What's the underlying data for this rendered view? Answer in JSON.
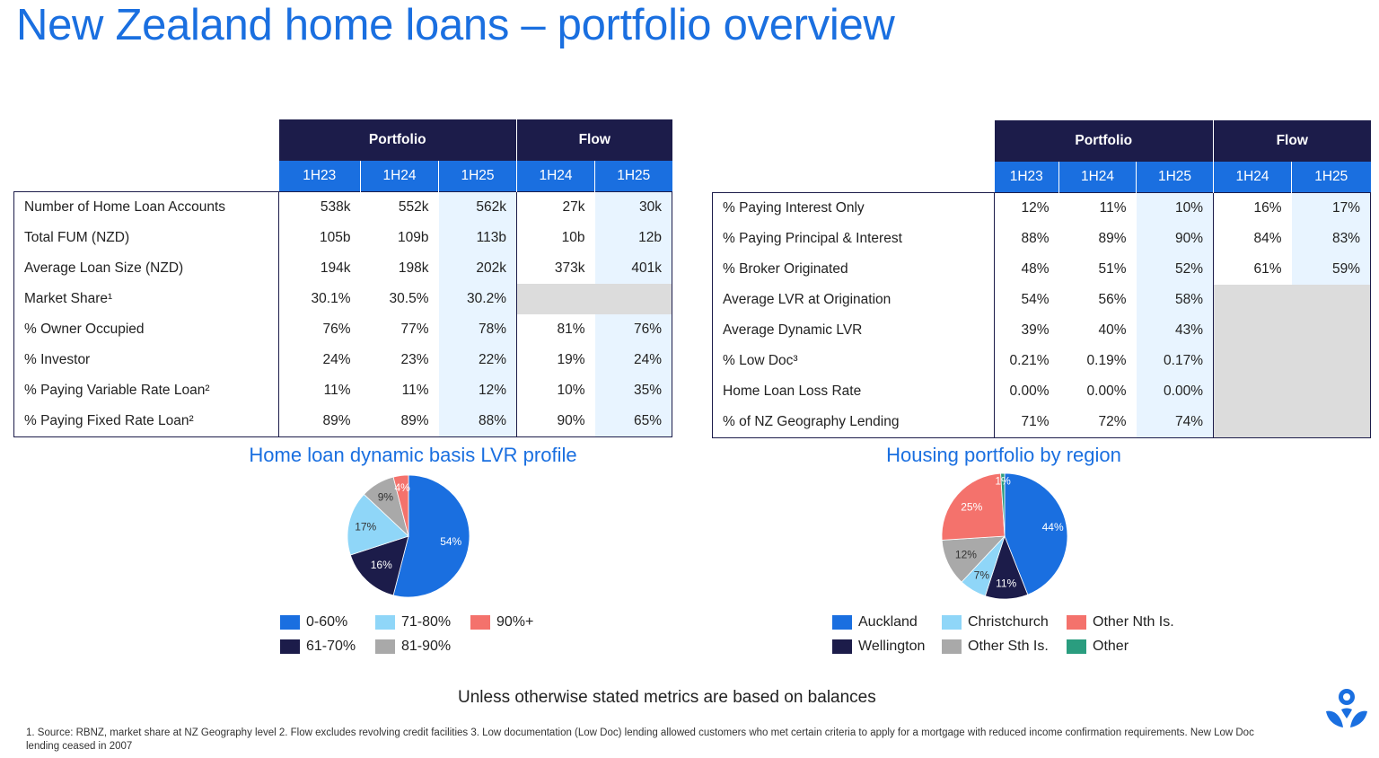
{
  "title": "New Zealand home loans – portfolio overview",
  "left_table": {
    "group_portfolio": "Portfolio",
    "group_flow": "Flow",
    "periods": [
      "1H23",
      "1H24",
      "1H25",
      "1H24",
      "1H25"
    ],
    "rows": [
      {
        "label": "Number of Home Loan Accounts",
        "values": [
          "538k",
          "552k",
          "562k",
          "27k",
          "30k"
        ]
      },
      {
        "label": "Total FUM (NZD)",
        "values": [
          "105b",
          "109b",
          "113b",
          "10b",
          "12b"
        ]
      },
      {
        "label": "Average Loan Size (NZD)",
        "values": [
          "194k",
          "198k",
          "202k",
          "373k",
          "401k"
        ]
      },
      {
        "label": "Market Share¹",
        "values": [
          "30.1%",
          "30.5%",
          "30.2%",
          "",
          ""
        ]
      },
      {
        "label": "% Owner Occupied",
        "values": [
          "76%",
          "77%",
          "78%",
          "81%",
          "76%"
        ]
      },
      {
        "label": "% Investor",
        "values": [
          "24%",
          "23%",
          "22%",
          "19%",
          "24%"
        ]
      },
      {
        "label": "% Paying Variable Rate Loan²",
        "values": [
          "11%",
          "11%",
          "12%",
          "10%",
          "35%"
        ]
      },
      {
        "label": "% Paying Fixed Rate Loan²",
        "values": [
          "89%",
          "89%",
          "88%",
          "90%",
          "65%"
        ]
      }
    ]
  },
  "right_table": {
    "group_portfolio": "Portfolio",
    "group_flow": "Flow",
    "periods": [
      "1H23",
      "1H24",
      "1H25",
      "1H24",
      "1H25"
    ],
    "rows": [
      {
        "label": "% Paying Interest Only",
        "values": [
          "12%",
          "11%",
          "10%",
          "16%",
          "17%"
        ]
      },
      {
        "label": "% Paying Principal & Interest",
        "values": [
          "88%",
          "89%",
          "90%",
          "84%",
          "83%"
        ]
      },
      {
        "label": "% Broker Originated",
        "values": [
          "48%",
          "51%",
          "52%",
          "61%",
          "59%"
        ]
      },
      {
        "label": "Average LVR at Origination",
        "values": [
          "54%",
          "56%",
          "58%",
          "",
          ""
        ]
      },
      {
        "label": "Average Dynamic LVR",
        "values": [
          "39%",
          "40%",
          "43%",
          "",
          ""
        ]
      },
      {
        "label": "% Low Doc³",
        "values": [
          "0.21%",
          "0.19%",
          "0.17%",
          "",
          ""
        ]
      },
      {
        "label": "Home Loan Loss Rate",
        "values": [
          "0.00%",
          "0.00%",
          "0.00%",
          "",
          ""
        ]
      },
      {
        "label": "% of NZ Geography Lending",
        "values": [
          "71%",
          "72%",
          "74%",
          "",
          ""
        ]
      }
    ]
  },
  "chart_data": [
    {
      "type": "pie",
      "title": "Home loan dynamic basis LVR profile",
      "slices": [
        {
          "name": "0-60%",
          "value": 54,
          "label": "54%",
          "color": "#1a6fe0"
        },
        {
          "name": "61-70%",
          "value": 16,
          "label": "16%",
          "color": "#1c1c4a"
        },
        {
          "name": "71-80%",
          "value": 17,
          "label": "17%",
          "color": "#8fd6f8"
        },
        {
          "name": "81-90%",
          "value": 9,
          "label": "9%",
          "color": "#a9a9a9"
        },
        {
          "name": "90%+",
          "value": 4,
          "label": "4%",
          "color": "#f4726c"
        }
      ],
      "legend": [
        "0-60%",
        "71-80%",
        "90%+",
        "61-70%",
        "81-90%"
      ]
    },
    {
      "type": "pie",
      "title": "Housing portfolio by region",
      "slices": [
        {
          "name": "Auckland",
          "value": 44,
          "label": "44%",
          "color": "#1a6fe0"
        },
        {
          "name": "Wellington",
          "value": 11,
          "label": "11%",
          "color": "#1c1c4a"
        },
        {
          "name": "Christchurch",
          "value": 7,
          "label": "7%",
          "color": "#8fd6f8"
        },
        {
          "name": "Other Sth Is.",
          "value": 12,
          "label": "12%",
          "color": "#a9a9a9"
        },
        {
          "name": "Other Nth Is.",
          "value": 25,
          "label": "25%",
          "color": "#f4726c"
        },
        {
          "name": "Other",
          "value": 1,
          "label": "1%",
          "color": "#2a9d7f"
        }
      ],
      "legend": [
        "Auckland",
        "Christchurch",
        "Other Nth Is.",
        "Wellington",
        "Other Sth Is.",
        "Other"
      ]
    }
  ],
  "note": "Unless otherwise stated metrics are based on balances",
  "footnote": "1. Source: RBNZ, market share at NZ Geography level 2. Flow excludes revolving credit facilities 3. Low documentation (Low Doc) lending allowed customers who met certain criteria to apply for a mortgage with reduced income confirmation requirements. New Low Doc lending ceased in 2007",
  "logo_icon": "anz-people-logo-icon"
}
